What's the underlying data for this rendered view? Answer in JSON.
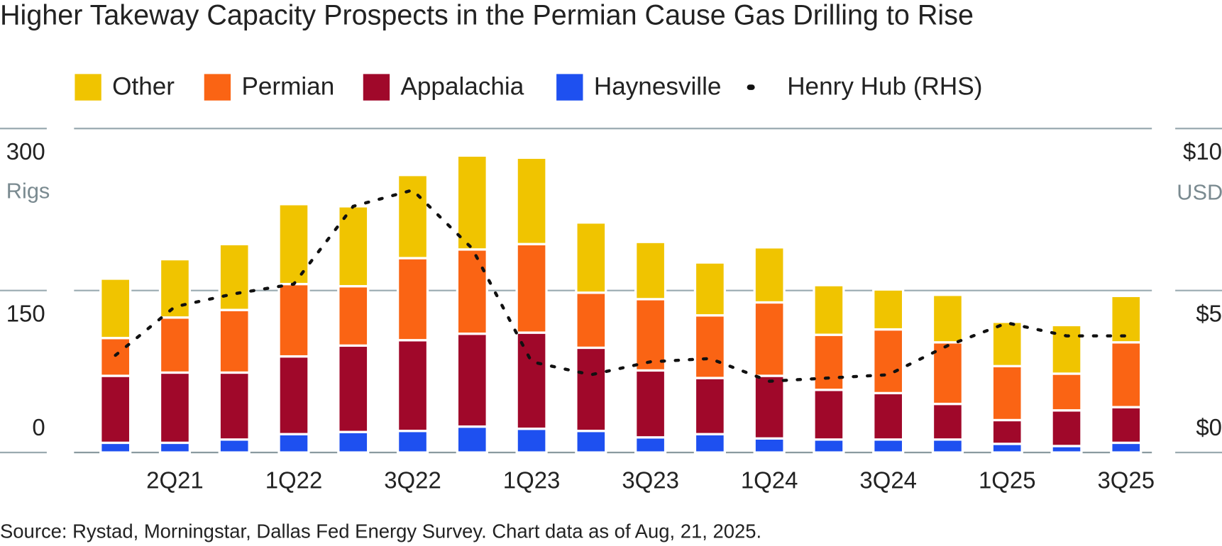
{
  "chart_data": {
    "type": "stacked-bar-line",
    "title": "Higher Takeway Capacity Prospects in the Permian Cause Gas Drilling to Rise",
    "y_label": "Rigs",
    "y2_label": "USD",
    "source": "Source: Rystad, Morningstar, Dallas Fed Energy Survey. Chart data as of Aug, 21, 2025.",
    "categories": [
      null,
      "2Q21",
      null,
      "1Q22",
      null,
      "3Q22",
      null,
      "1Q23",
      null,
      "3Q23",
      null,
      "1Q24",
      null,
      "3Q24",
      null,
      "1Q25",
      null,
      "3Q25"
    ],
    "series": [
      {
        "name": "Other",
        "color": "#f0c400",
        "values": [
          55,
          54,
          61,
          74,
          74,
          77,
          87,
          80,
          65,
          53,
          49,
          51,
          46,
          37,
          44,
          41,
          45,
          43
        ]
      },
      {
        "name": "Permian",
        "color": "#fa6414",
        "values": [
          35,
          51,
          58,
          67,
          55,
          76,
          78,
          82,
          51,
          66,
          58,
          68,
          51,
          59,
          57,
          50,
          34,
          60
        ]
      },
      {
        "name": "Appalachia",
        "color": "#a0082a",
        "values": [
          62,
          65,
          62,
          72,
          80,
          84,
          86,
          89,
          77,
          62,
          52,
          58,
          46,
          43,
          33,
          22,
          33,
          33
        ]
      },
      {
        "name": "Haynesville",
        "color": "#1e50f0",
        "values": [
          9,
          9,
          12,
          17,
          19,
          20,
          24,
          22,
          20,
          14,
          17,
          13,
          12,
          12,
          12,
          8,
          6,
          9
        ]
      },
      {
        "name": "Henry Hub (RHS)",
        "color": "#111111",
        "axis": "y2",
        "values": [
          3.0,
          4.5,
          4.9,
          5.2,
          7.6,
          8.1,
          6.3,
          2.8,
          2.4,
          2.8,
          2.9,
          2.2,
          2.3,
          2.4,
          3.3,
          4.0,
          3.6,
          3.6
        ]
      }
    ],
    "ylim": [
      0,
      300
    ],
    "yticks": [
      0,
      150,
      300
    ],
    "y2lim": [
      0,
      10
    ],
    "y2ticks": [
      {
        "value": 0,
        "label": "$0"
      },
      {
        "value": 5,
        "label": "$5"
      },
      {
        "value": 10,
        "label": "$10"
      }
    ]
  }
}
